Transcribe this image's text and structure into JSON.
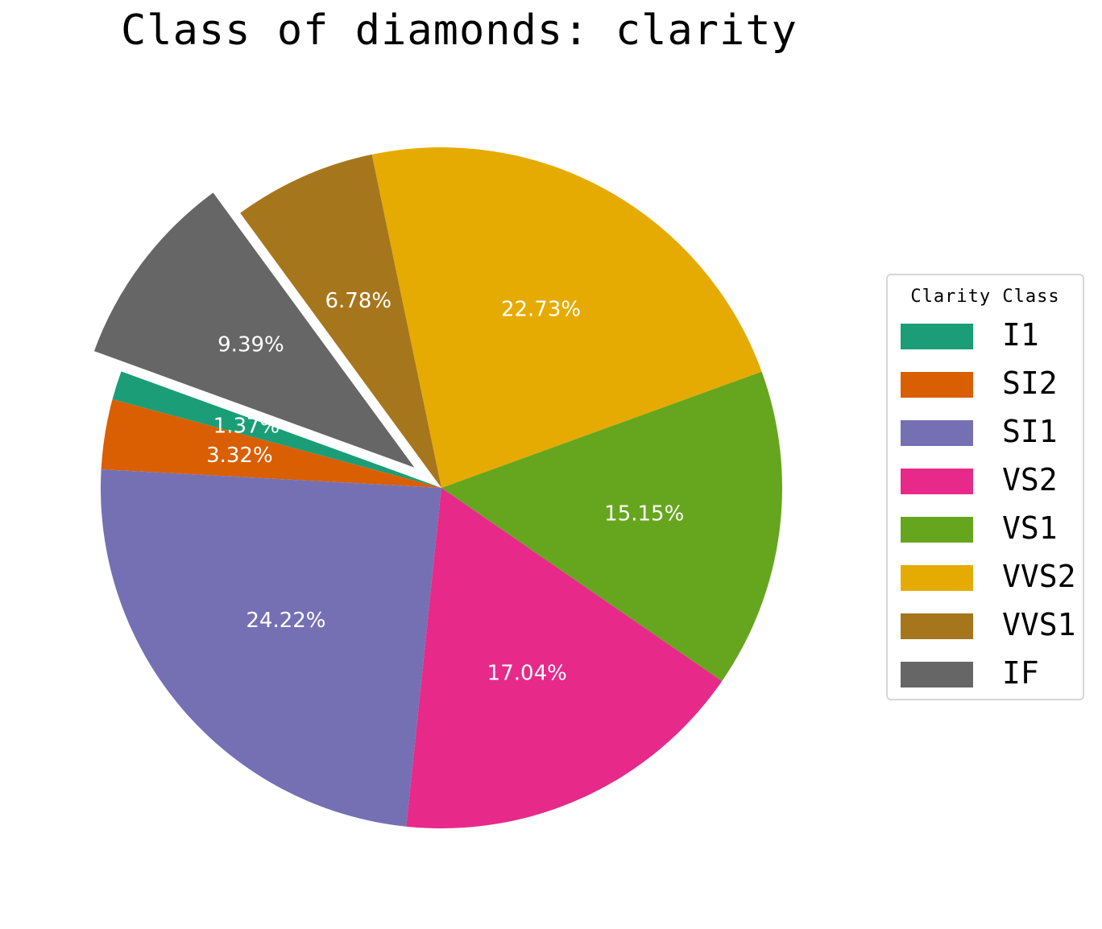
{
  "chart_data": {
    "type": "pie",
    "title": "Class of diamonds: clarity",
    "legend_title": "Clarity Class",
    "legend_position": "right",
    "start_angle_deg": 160,
    "direction": "counterclockwise",
    "exploded": [
      "IF"
    ],
    "slices": [
      {
        "label": "I1",
        "value": 1.37,
        "pct_label": "1.37%",
        "color": "#1b9e77"
      },
      {
        "label": "SI2",
        "value": 3.32,
        "pct_label": "3.32%",
        "color": "#d95f02"
      },
      {
        "label": "SI1",
        "value": 24.22,
        "pct_label": "24.22%",
        "color": "#7570b3"
      },
      {
        "label": "VS2",
        "value": 17.04,
        "pct_label": "17.04%",
        "color": "#e7298a"
      },
      {
        "label": "VS1",
        "value": 15.15,
        "pct_label": "15.15%",
        "color": "#66a61e"
      },
      {
        "label": "VVS2",
        "value": 22.73,
        "pct_label": "22.73%",
        "color": "#e6ab02"
      },
      {
        "label": "VVS1",
        "value": 6.78,
        "pct_label": "6.78%",
        "color": "#a6761d"
      },
      {
        "label": "IF",
        "value": 9.39,
        "pct_label": "9.39%",
        "color": "#666666"
      }
    ]
  }
}
